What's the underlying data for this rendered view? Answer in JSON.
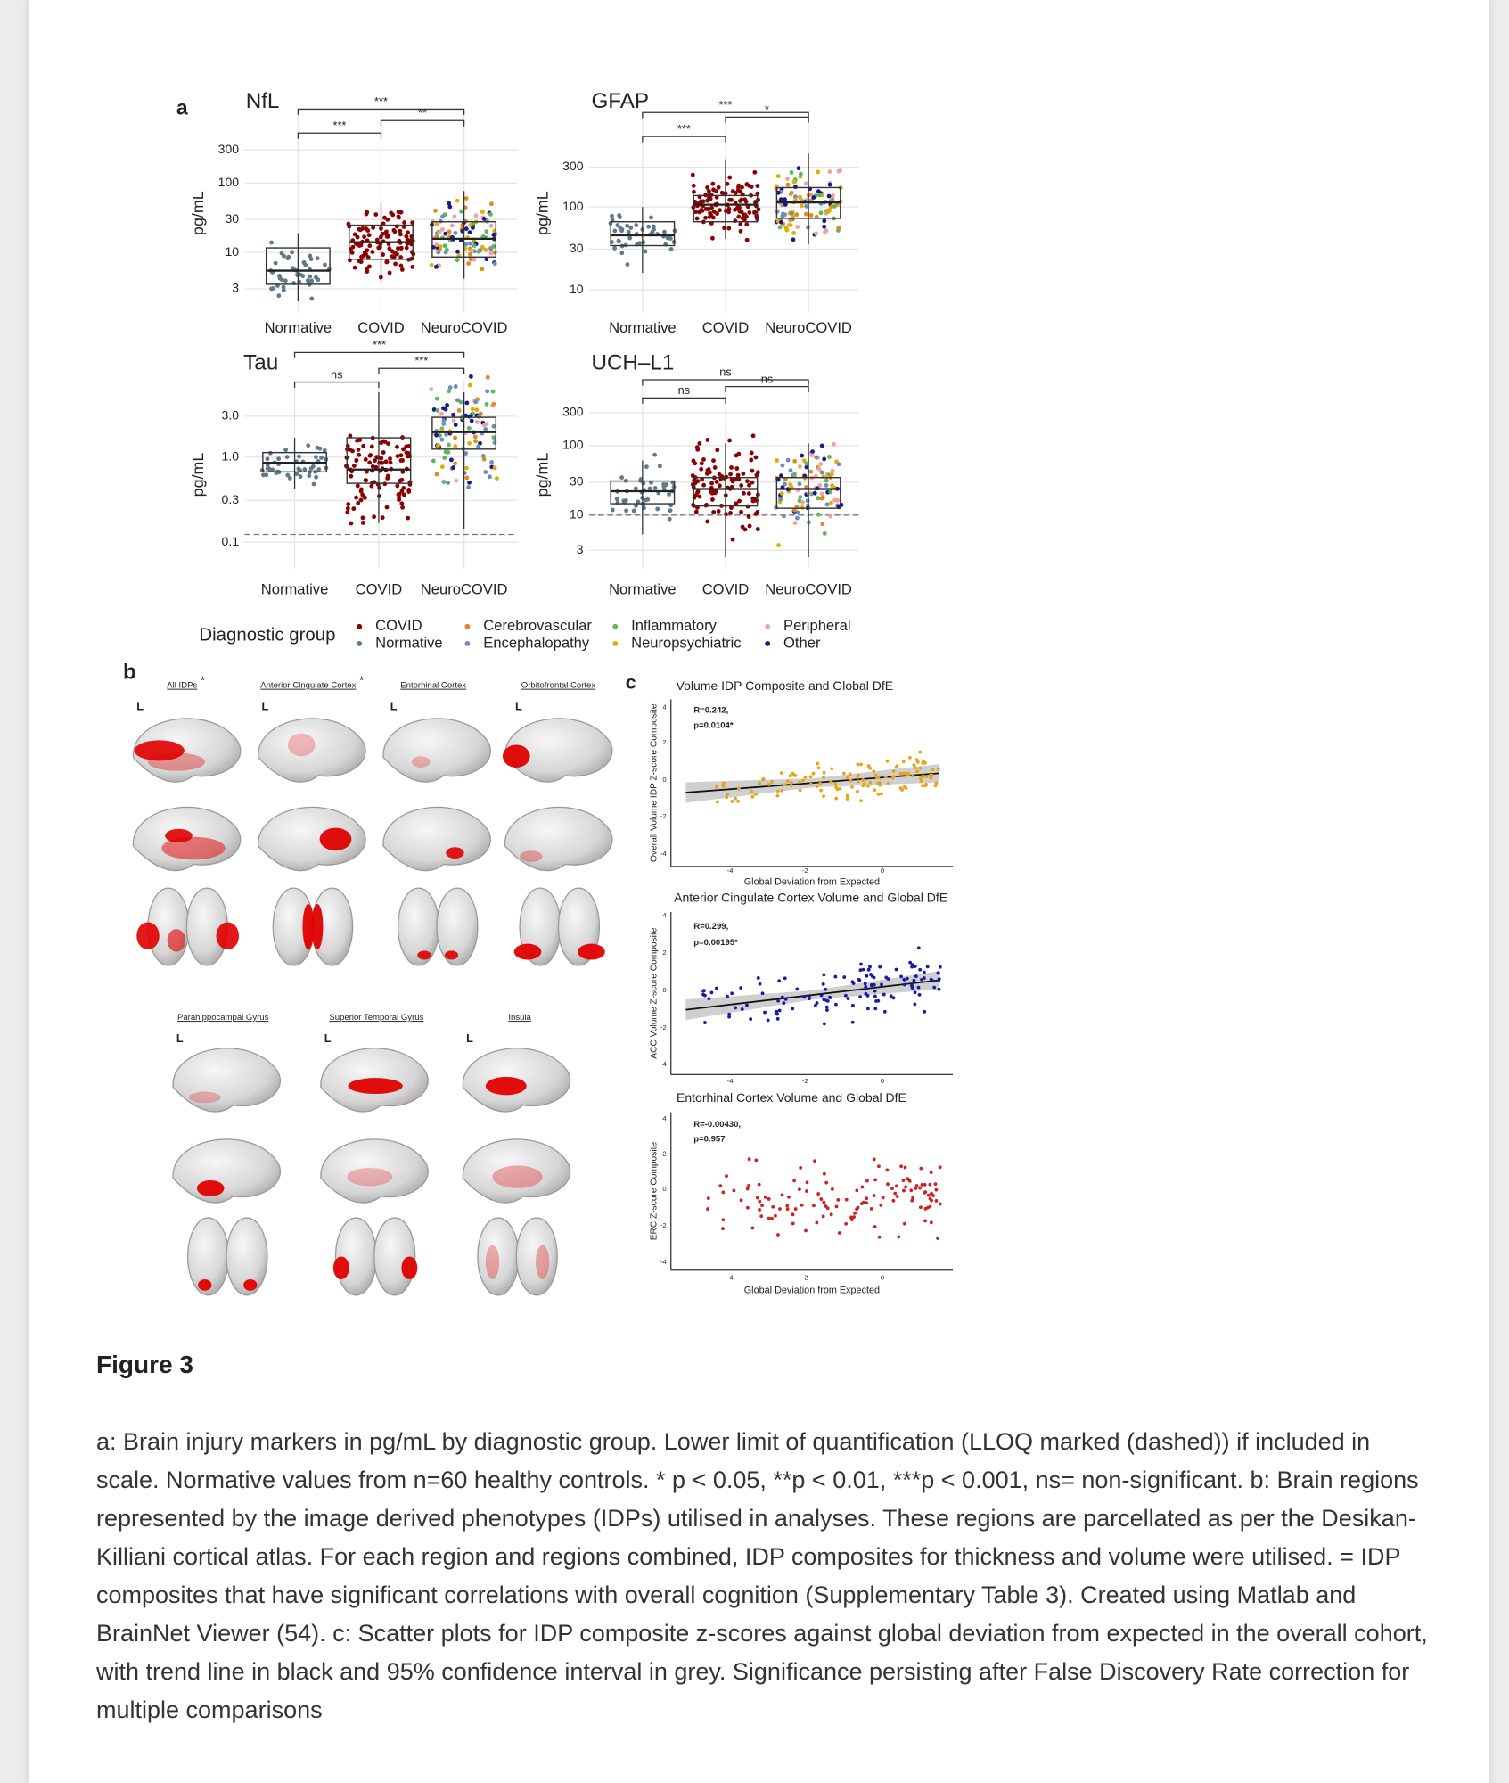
{
  "figure": {
    "panel_a": {
      "label": "a",
      "plots": [
        {
          "title": "NfL",
          "y_label": "pg/mL",
          "yticks": [
            "300",
            "100",
            "30",
            "10",
            "3"
          ],
          "groups": [
            "Normative",
            "COVID",
            "NeuroCOVID"
          ],
          "brackets": [
            "***",
            "***",
            "**"
          ]
        },
        {
          "title": "GFAP",
          "y_label": "pg/mL",
          "yticks": [
            "300",
            "100",
            "30",
            "10"
          ],
          "groups": [
            "Normative",
            "COVID",
            "NeuroCOVID"
          ],
          "brackets": [
            "***",
            "***",
            "*"
          ]
        },
        {
          "title": "Tau",
          "y_label": "pg/mL",
          "yticks": [
            "3.0",
            "1.0",
            "0.3",
            "0.1"
          ],
          "groups": [
            "Normative",
            "COVID",
            "NeuroCOVID"
          ],
          "brackets": [
            "***",
            "ns",
            "***"
          ]
        },
        {
          "title": "UCH–L1",
          "y_label": "pg/mL",
          "yticks": [
            "300",
            "100",
            "30",
            "10",
            "3"
          ],
          "groups": [
            "Normative",
            "COVID",
            "NeuroCOVID"
          ],
          "brackets": [
            "ns",
            "ns",
            "ns"
          ]
        }
      ],
      "legend": {
        "title": "Diagnostic group",
        "items": [
          {
            "label": "COVID",
            "color": "#8b0000"
          },
          {
            "label": "Normative",
            "color": "#5f7a8a"
          },
          {
            "label": "Cerebrovascular",
            "color": "#e08a1e"
          },
          {
            "label": "Encephalopathy",
            "color": "#6c8ebf"
          },
          {
            "label": "Inflammatory",
            "color": "#5cb85c"
          },
          {
            "label": "Neuropsychiatric",
            "color": "#e0b000"
          },
          {
            "label": "Peripheral",
            "color": "#f4a0a0"
          },
          {
            "label": "Other",
            "color": "#1a1a8c"
          }
        ]
      }
    },
    "panel_b": {
      "label": "b",
      "regions": [
        {
          "name": "All IDPs",
          "marker": "*",
          "side": "L"
        },
        {
          "name": "Anterior Cingulate Cortex",
          "marker": "*",
          "side": "L"
        },
        {
          "name": "Entorhinal Cortex",
          "side": "L"
        },
        {
          "name": "Orbitofrontal Cortex",
          "side": "L"
        },
        {
          "name": "Parahippocampal Gyrus",
          "side": "L"
        },
        {
          "name": "Superior Temporal Gyrus",
          "side": "L"
        },
        {
          "name": "Insula",
          "side": "L"
        }
      ]
    },
    "panel_c": {
      "label": "c",
      "plots": [
        {
          "title": "Volume IDP Composite and Global DfE",
          "stats": [
            "R=0.242,",
            "p=0.0104*"
          ],
          "y_label": "Overall Volume IDP Z-score Composite",
          "x_label": "Global Deviation from Expected",
          "yticks": [
            "4",
            "2",
            "0",
            "-2",
            "-4"
          ],
          "xticks": [
            "-4",
            "-2",
            "0"
          ],
          "color": "#e8a317"
        },
        {
          "title": "Anterior Cingulate Cortex Volume and Global DfE",
          "stats": [
            "R=0.299,",
            "p=0.00195*"
          ],
          "y_label": "ACC Volume Z-score Composite",
          "yticks": [
            "4",
            "2",
            "0",
            "-2",
            "-4"
          ],
          "xticks": [
            "-4",
            "-2",
            "0"
          ],
          "color": "#1a1aa8"
        },
        {
          "title": "Entorhinal Cortex Volume and Global DfE",
          "stats": [
            "R=-0.00430,",
            "p=0.957"
          ],
          "y_label": "ERC Z-score Composite",
          "x_label": "Global Deviation from Expected",
          "yticks": [
            "4",
            "2",
            "0",
            "-2",
            "-4"
          ],
          "xticks": [
            "-4",
            "-2",
            "0"
          ],
          "color": "#cc2222"
        }
      ]
    }
  },
  "figure_title": "Figure 3",
  "caption": "a: Brain injury markers in pg/mL by diagnostic group. Lower limit of quantification (LLOQ marked (dashed)) if included in scale. Normative values from n=60 healthy controls. * p < 0.05, **p < 0.01, ***p < 0.001, ns= non-significant. b: Brain regions represented by the image derived phenotypes (IDPs) utilised in analyses. These regions are parcellated as per the Desikan-Killiani cortical atlas. For each region and regions combined, IDP composites for thickness and volume were utilised.  = IDP composites that have significant correlations with overall cognition (Supplementary Table 3). Created using Matlab and BrainNet Viewer (54). c: Scatter plots for IDP composite z-scores against global deviation from expected in the overall cohort, with trend line in black and 95% confidence interval in grey. Significance persisting after False Discovery Rate correction for multiple comparisons"
}
